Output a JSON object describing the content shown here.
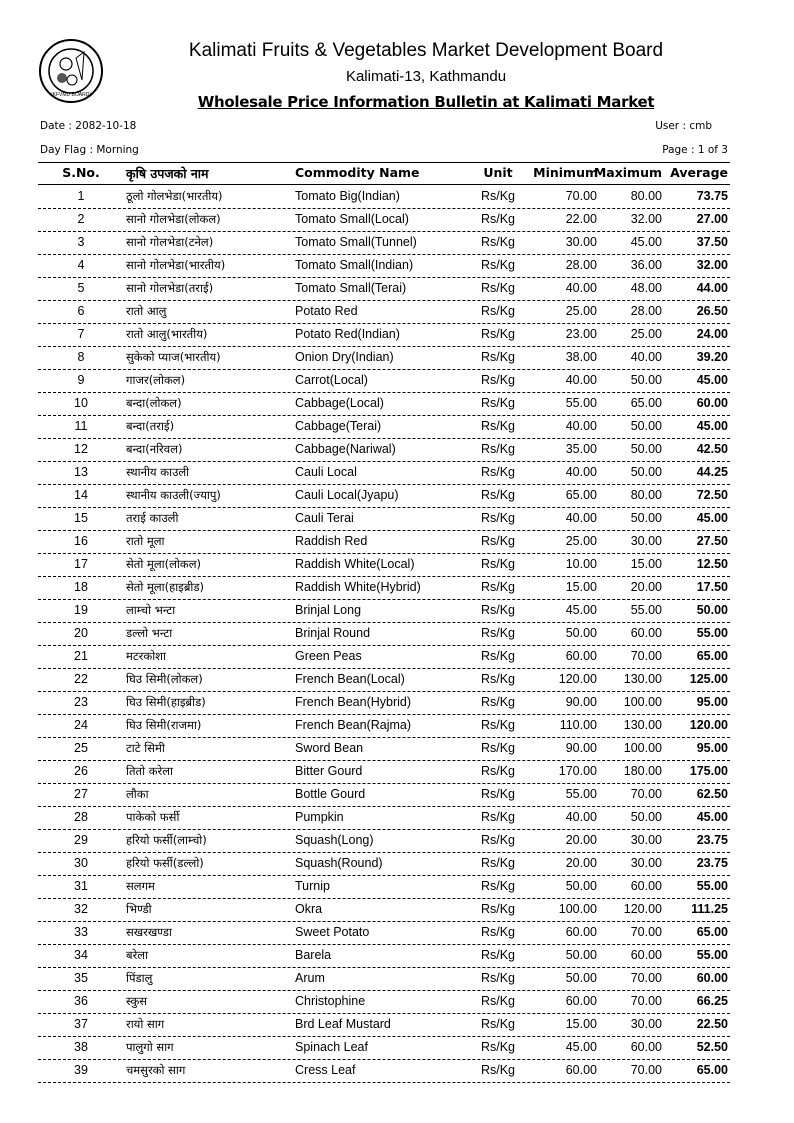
{
  "header": {
    "logo_text": "(KFVMD BOARD)",
    "title": "Kalimati Fruits & Vegetables Market Development Board",
    "subtitle": "Kalimati-13, Kathmandu",
    "bulletin": "Wholesale Price Information Bulletin at Kalimati Market",
    "date": "Date : 2082-10-18",
    "user": "User : cmb",
    "day_flag": "Day Flag : Morning",
    "page": "Page : 1 of 3"
  },
  "table": {
    "columns": [
      "S.No.",
      "कृषि उपजको नाम",
      "Commodity Name",
      "Unit",
      "Minimum",
      "Maximum",
      "Average"
    ],
    "rows": [
      [
        "1",
        "ठूलो गोलभेडा(भारतीय)",
        "Tomato Big(Indian)",
        "Rs/Kg",
        "70.00",
        "80.00",
        "73.75"
      ],
      [
        "2",
        "सानो गोलभेडा(लोकल)",
        "Tomato Small(Local)",
        "Rs/Kg",
        "22.00",
        "32.00",
        "27.00"
      ],
      [
        "3",
        "सानो गोलभेडा(टनेल)",
        "Tomato Small(Tunnel)",
        "Rs/Kg",
        "30.00",
        "45.00",
        "37.50"
      ],
      [
        "4",
        "सानो गोलभेडा(भारतीय)",
        "Tomato Small(Indian)",
        "Rs/Kg",
        "28.00",
        "36.00",
        "32.00"
      ],
      [
        "5",
        "सानो गोलभेडा(तराई)",
        "Tomato Small(Terai)",
        "Rs/Kg",
        "40.00",
        "48.00",
        "44.00"
      ],
      [
        "6",
        "रातो आलु",
        "Potato Red",
        "Rs/Kg",
        "25.00",
        "28.00",
        "26.50"
      ],
      [
        "7",
        "रातो आलु(भारतीय)",
        "Potato Red(Indian)",
        "Rs/Kg",
        "23.00",
        "25.00",
        "24.00"
      ],
      [
        "8",
        "सुकेको प्याज(भारतीय)",
        "Onion Dry(Indian)",
        "Rs/Kg",
        "38.00",
        "40.00",
        "39.20"
      ],
      [
        "9",
        "गाजर(लोकल)",
        "Carrot(Local)",
        "Rs/Kg",
        "40.00",
        "50.00",
        "45.00"
      ],
      [
        "10",
        "बन्दा(लोकल)",
        "Cabbage(Local)",
        "Rs/Kg",
        "55.00",
        "65.00",
        "60.00"
      ],
      [
        "11",
        "बन्दा(तराई)",
        "Cabbage(Terai)",
        "Rs/Kg",
        "40.00",
        "50.00",
        "45.00"
      ],
      [
        "12",
        "बन्दा(नरिवल)",
        "Cabbage(Nariwal)",
        "Rs/Kg",
        "35.00",
        "50.00",
        "42.50"
      ],
      [
        "13",
        "स्थानीय काउली",
        "Cauli Local",
        "Rs/Kg",
        "40.00",
        "50.00",
        "44.25"
      ],
      [
        "14",
        "स्थानीय काउली(ज्यापु)",
        "Cauli Local(Jyapu)",
        "Rs/Kg",
        "65.00",
        "80.00",
        "72.50"
      ],
      [
        "15",
        "तराई काउली",
        "Cauli Terai",
        "Rs/Kg",
        "40.00",
        "50.00",
        "45.00"
      ],
      [
        "16",
        "रातो मूला",
        "Raddish Red",
        "Rs/Kg",
        "25.00",
        "30.00",
        "27.50"
      ],
      [
        "17",
        "सेतो मूला(लोकल)",
        "Raddish White(Local)",
        "Rs/Kg",
        "10.00",
        "15.00",
        "12.50"
      ],
      [
        "18",
        "सेतो मूला(हाइब्रीड)",
        "Raddish White(Hybrid)",
        "Rs/Kg",
        "15.00",
        "20.00",
        "17.50"
      ],
      [
        "19",
        "लाम्चो भन्टा",
        "Brinjal Long",
        "Rs/Kg",
        "45.00",
        "55.00",
        "50.00"
      ],
      [
        "20",
        "डल्लो भन्टा",
        "Brinjal Round",
        "Rs/Kg",
        "50.00",
        "60.00",
        "55.00"
      ],
      [
        "21",
        "मटरकोशा",
        "Green Peas",
        "Rs/Kg",
        "60.00",
        "70.00",
        "65.00"
      ],
      [
        "22",
        "घिउ सिमी(लोकल)",
        "French Bean(Local)",
        "Rs/Kg",
        "120.00",
        "130.00",
        "125.00"
      ],
      [
        "23",
        "घिउ सिमी(हाइब्रीड)",
        "French Bean(Hybrid)",
        "Rs/Kg",
        "90.00",
        "100.00",
        "95.00"
      ],
      [
        "24",
        "घिउ सिमी(राजमा)",
        "French Bean(Rajma)",
        "Rs/Kg",
        "110.00",
        "130.00",
        "120.00"
      ],
      [
        "25",
        "टाटे सिमी",
        "Sword Bean",
        "Rs/Kg",
        "90.00",
        "100.00",
        "95.00"
      ],
      [
        "26",
        "तितो करेला",
        "Bitter Gourd",
        "Rs/Kg",
        "170.00",
        "180.00",
        "175.00"
      ],
      [
        "27",
        "लौका",
        "Bottle Gourd",
        "Rs/Kg",
        "55.00",
        "70.00",
        "62.50"
      ],
      [
        "28",
        "पाकेको फर्सी",
        "Pumpkin",
        "Rs/Kg",
        "40.00",
        "50.00",
        "45.00"
      ],
      [
        "29",
        "हरियो फर्सी(लाम्चो)",
        "Squash(Long)",
        "Rs/Kg",
        "20.00",
        "30.00",
        "23.75"
      ],
      [
        "30",
        "हरियो फर्सी(डल्लो)",
        "Squash(Round)",
        "Rs/Kg",
        "20.00",
        "30.00",
        "23.75"
      ],
      [
        "31",
        "सलगम",
        "Turnip",
        "Rs/Kg",
        "50.00",
        "60.00",
        "55.00"
      ],
      [
        "32",
        "भिण्डी",
        "Okra",
        "Rs/Kg",
        "100.00",
        "120.00",
        "111.25"
      ],
      [
        "33",
        "सखरखण्डा",
        "Sweet Potato",
        "Rs/Kg",
        "60.00",
        "70.00",
        "65.00"
      ],
      [
        "34",
        "बरेला",
        "Barela",
        "Rs/Kg",
        "50.00",
        "60.00",
        "55.00"
      ],
      [
        "35",
        "पिंडालु",
        "Arum",
        "Rs/Kg",
        "50.00",
        "70.00",
        "60.00"
      ],
      [
        "36",
        "स्कुस",
        "Christophine",
        "Rs/Kg",
        "60.00",
        "70.00",
        "66.25"
      ],
      [
        "37",
        "रायो साग",
        "Brd Leaf Mustard",
        "Rs/Kg",
        "15.00",
        "30.00",
        "22.50"
      ],
      [
        "38",
        "पालुगो साग",
        "Spinach Leaf",
        "Rs/Kg",
        "45.00",
        "60.00",
        "52.50"
      ],
      [
        "39",
        "चमसुरको साग",
        "Cress Leaf",
        "Rs/Kg",
        "60.00",
        "70.00",
        "65.00"
      ]
    ]
  }
}
